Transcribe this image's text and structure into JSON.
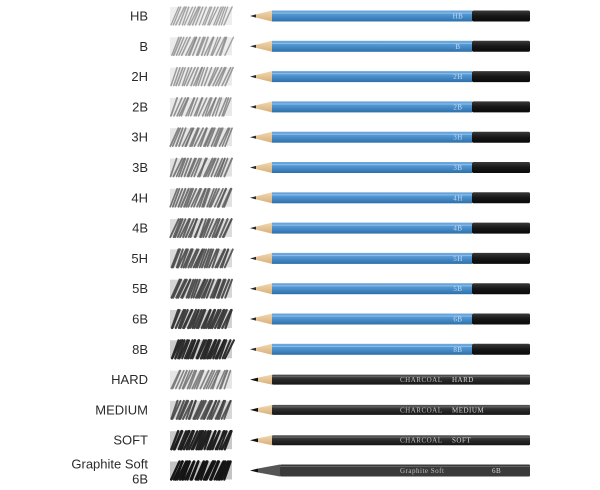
{
  "rows": [
    {
      "grade": "HB",
      "type": "blue",
      "darkness": 0.35,
      "print": "HB"
    },
    {
      "grade": "B",
      "type": "blue",
      "darkness": 0.38,
      "print": "B"
    },
    {
      "grade": "2H",
      "type": "blue",
      "darkness": 0.4,
      "print": "2H"
    },
    {
      "grade": "2B",
      "type": "blue",
      "darkness": 0.44,
      "print": "2B"
    },
    {
      "grade": "3H",
      "type": "blue",
      "darkness": 0.5,
      "print": "3H"
    },
    {
      "grade": "3B",
      "type": "blue",
      "darkness": 0.54,
      "print": "3B"
    },
    {
      "grade": "4H",
      "type": "blue",
      "darkness": 0.58,
      "print": "4H"
    },
    {
      "grade": "4B",
      "type": "blue",
      "darkness": 0.64,
      "print": "4B"
    },
    {
      "grade": "5H",
      "type": "blue",
      "darkness": 0.68,
      "print": "5H"
    },
    {
      "grade": "5B",
      "type": "blue",
      "darkness": 0.72,
      "print": "5B"
    },
    {
      "grade": "6B",
      "type": "blue",
      "darkness": 0.78,
      "print": "6B"
    },
    {
      "grade": "8B",
      "type": "blue",
      "darkness": 0.86,
      "print": "8B"
    },
    {
      "grade": "HARD",
      "type": "charcoal",
      "darkness": 0.5,
      "brand": "CHARCOAL",
      "print": "HARD"
    },
    {
      "grade": "MEDIUM",
      "type": "charcoal",
      "darkness": 0.7,
      "brand": "CHARCOAL",
      "print": "MEDIUM"
    },
    {
      "grade": "SOFT",
      "type": "charcoal",
      "darkness": 0.9,
      "brand": "CHARCOAL",
      "print": "SOFT"
    },
    {
      "grade": "Graphite Soft\n6B",
      "type": "graphite",
      "darkness": 0.95,
      "brand": "Graphite Soft",
      "print": "6B"
    }
  ],
  "colors": {
    "pencil_blue": "#4a8fcb",
    "pencil_blue_light": "#6ea9dd",
    "pencil_blue_dark": "#2e6fa8",
    "pencil_end": "#1b1b1b",
    "wood": "#e8c79a",
    "charcoal_body": "#2a2a2a",
    "graphite_body": "#3a3a3a",
    "label_text": "#2b2b2b"
  },
  "icons": {
    "swatch": "pencil-stroke-swatch-icon",
    "pencil": "pencil-icon"
  }
}
